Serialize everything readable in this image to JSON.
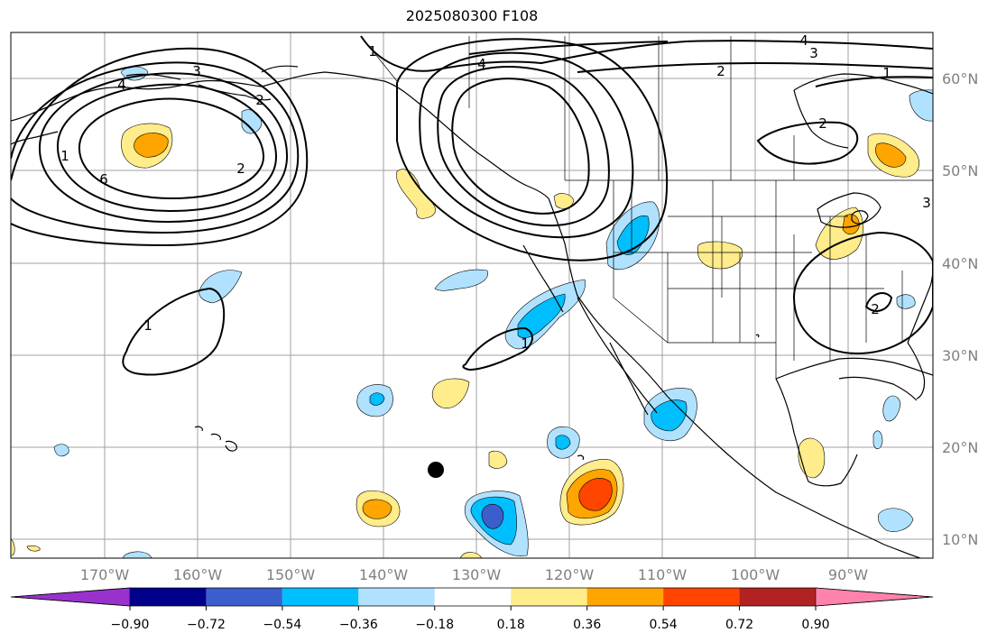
{
  "title": "2025080300 F108",
  "lon_labels": [
    "170°W",
    "160°W",
    "150°W",
    "140°W",
    "130°W",
    "120°W",
    "110°W",
    "100°W",
    "90°W"
  ],
  "lat_labels": [
    "60°N",
    "50°N",
    "40°N",
    "30°N",
    "20°N",
    "10°N"
  ],
  "colorbar": {
    "ticks": [
      "−0.90",
      "−0.72",
      "−0.54",
      "−0.36",
      "−0.18",
      "0.18",
      "0.36",
      "0.54",
      "0.72",
      "0.90"
    ],
    "colors": [
      "#9932cc",
      "#00008b",
      "#3a5fcd",
      "#00bfff",
      "#b0e2ff",
      "#ffffff",
      "#ffec8b",
      "#ffa500",
      "#ff4500",
      "#b22222",
      "#ff82ab"
    ]
  },
  "contour_labels": [
    "1",
    "2",
    "3",
    "4",
    "6",
    "4",
    "1",
    "2",
    "4",
    "3",
    "2",
    "1",
    "2",
    "1",
    "1",
    "2",
    "3"
  ],
  "fill_colors": {
    "neg_light": "#b0e2ff",
    "neg_mid": "#00bfff",
    "neg_dark": "#3a5fcd",
    "pos_light": "#ffec8b",
    "pos_mid": "#ffa500",
    "pos_dark": "#ff4500"
  }
}
